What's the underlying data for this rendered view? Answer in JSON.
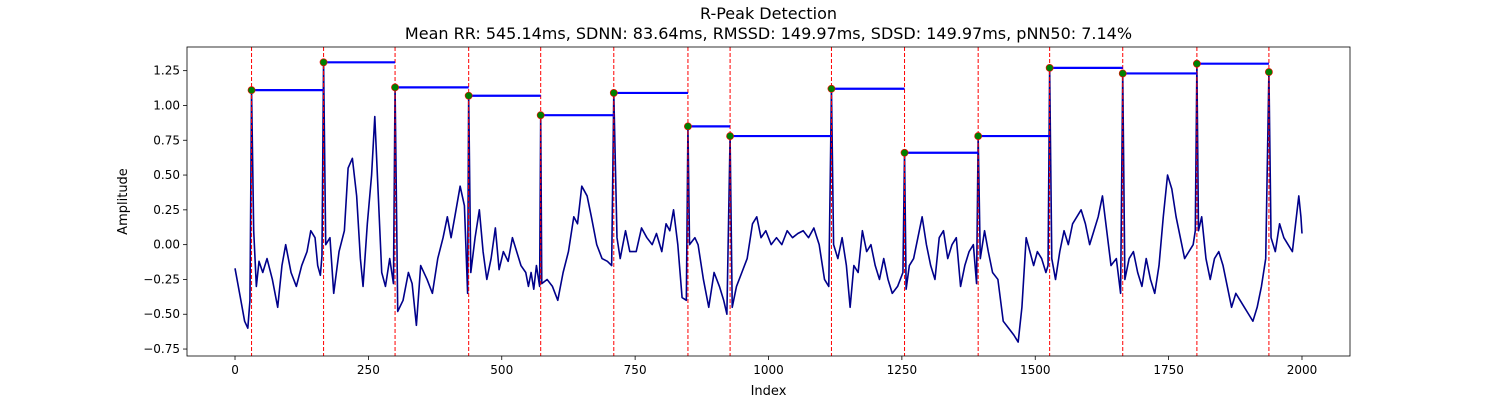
{
  "chart_data": {
    "type": "line",
    "title": "R-Peak Detection",
    "subtitle": "Mean RR: 545.14ms, SDNN: 83.64ms, RMSSD: 149.97ms, SDSD: 149.97ms, pNN50: 7.14%",
    "xlabel": "Index",
    "ylabel": "Amplitude",
    "xlim": [
      -90,
      2090
    ],
    "ylim": [
      -0.8,
      1.42
    ],
    "x_ticks": [
      0,
      250,
      500,
      750,
      1000,
      1250,
      1500,
      1750,
      2000
    ],
    "y_ticks": [
      -0.75,
      -0.5,
      -0.25,
      0.0,
      0.25,
      0.5,
      0.75,
      1.0,
      1.25
    ],
    "y_tick_labels": [
      "−0.75",
      "−0.50",
      "−0.25",
      "0.00",
      "0.25",
      "0.50",
      "0.75",
      "1.00",
      "1.25"
    ],
    "grid": false,
    "colors": {
      "signal": "#00008b",
      "peak_marker": "#008000",
      "peak_marker_edge": "#ff0000",
      "peak_line": "#ff0000",
      "rr_segment": "#0000ff"
    },
    "signal_keypoints": [
      [
        0,
        -0.17
      ],
      [
        10,
        -0.38
      ],
      [
        18,
        -0.55
      ],
      [
        24,
        -0.6
      ],
      [
        28,
        -0.4
      ],
      [
        31,
        1.11
      ],
      [
        35,
        0.1
      ],
      [
        40,
        -0.3
      ],
      [
        45,
        -0.12
      ],
      [
        52,
        -0.2
      ],
      [
        60,
        -0.1
      ],
      [
        70,
        -0.25
      ],
      [
        80,
        -0.45
      ],
      [
        88,
        -0.15
      ],
      [
        95,
        0.0
      ],
      [
        105,
        -0.2
      ],
      [
        115,
        -0.3
      ],
      [
        125,
        -0.15
      ],
      [
        135,
        -0.05
      ],
      [
        142,
        0.1
      ],
      [
        150,
        0.05
      ],
      [
        155,
        -0.15
      ],
      [
        160,
        -0.22
      ],
      [
        163,
        -0.08
      ],
      [
        166,
        1.31
      ],
      [
        170,
        0.0
      ],
      [
        178,
        0.05
      ],
      [
        185,
        -0.35
      ],
      [
        190,
        -0.2
      ],
      [
        195,
        -0.05
      ],
      [
        205,
        0.1
      ],
      [
        212,
        0.55
      ],
      [
        220,
        0.62
      ],
      [
        228,
        0.35
      ],
      [
        235,
        -0.1
      ],
      [
        240,
        -0.3
      ],
      [
        248,
        0.15
      ],
      [
        256,
        0.5
      ],
      [
        262,
        0.92
      ],
      [
        268,
        0.4
      ],
      [
        275,
        -0.2
      ],
      [
        282,
        -0.3
      ],
      [
        290,
        -0.1
      ],
      [
        297,
        -0.28
      ],
      [
        300,
        1.13
      ],
      [
        305,
        -0.48
      ],
      [
        315,
        -0.4
      ],
      [
        325,
        -0.2
      ],
      [
        332,
        -0.28
      ],
      [
        340,
        -0.58
      ],
      [
        348,
        -0.15
      ],
      [
        360,
        -0.25
      ],
      [
        370,
        -0.35
      ],
      [
        380,
        -0.1
      ],
      [
        390,
        0.05
      ],
      [
        398,
        0.2
      ],
      [
        405,
        0.05
      ],
      [
        412,
        0.2
      ],
      [
        422,
        0.42
      ],
      [
        430,
        0.28
      ],
      [
        436,
        -0.35
      ],
      [
        438,
        1.07
      ],
      [
        442,
        -0.2
      ],
      [
        450,
        0.05
      ],
      [
        458,
        0.25
      ],
      [
        465,
        -0.05
      ],
      [
        472,
        -0.25
      ],
      [
        480,
        -0.1
      ],
      [
        488,
        0.12
      ],
      [
        495,
        -0.18
      ],
      [
        503,
        -0.05
      ],
      [
        512,
        -0.12
      ],
      [
        520,
        0.05
      ],
      [
        528,
        -0.05
      ],
      [
        536,
        -0.15
      ],
      [
        545,
        -0.2
      ],
      [
        550,
        -0.3
      ],
      [
        555,
        -0.2
      ],
      [
        560,
        -0.32
      ],
      [
        565,
        -0.15
      ],
      [
        571,
        -0.3
      ],
      [
        573,
        0.93
      ],
      [
        575,
        -0.28
      ],
      [
        585,
        -0.25
      ],
      [
        595,
        -0.3
      ],
      [
        605,
        -0.4
      ],
      [
        615,
        -0.2
      ],
      [
        625,
        -0.05
      ],
      [
        635,
        0.2
      ],
      [
        642,
        0.15
      ],
      [
        650,
        0.42
      ],
      [
        660,
        0.35
      ],
      [
        668,
        0.2
      ],
      [
        678,
        0.0
      ],
      [
        688,
        -0.1
      ],
      [
        698,
        -0.12
      ],
      [
        706,
        -0.15
      ],
      [
        710,
        1.09
      ],
      [
        716,
        0.05
      ],
      [
        722,
        -0.1
      ],
      [
        732,
        0.1
      ],
      [
        740,
        -0.05
      ],
      [
        752,
        -0.05
      ],
      [
        762,
        0.12
      ],
      [
        772,
        0.05
      ],
      [
        782,
        0.0
      ],
      [
        790,
        0.08
      ],
      [
        800,
        -0.05
      ],
      [
        808,
        0.15
      ],
      [
        815,
        0.1
      ],
      [
        822,
        0.25
      ],
      [
        830,
        0.0
      ],
      [
        838,
        -0.38
      ],
      [
        846,
        -0.4
      ],
      [
        849,
        0.85
      ],
      [
        852,
        0.0
      ],
      [
        862,
        0.05
      ],
      [
        868,
        0.0
      ],
      [
        878,
        -0.25
      ],
      [
        888,
        -0.45
      ],
      [
        898,
        -0.2
      ],
      [
        908,
        -0.3
      ],
      [
        916,
        -0.4
      ],
      [
        922,
        -0.5
      ],
      [
        928,
        0.78
      ],
      [
        932,
        -0.45
      ],
      [
        940,
        -0.3
      ],
      [
        950,
        -0.2
      ],
      [
        960,
        -0.1
      ],
      [
        970,
        0.15
      ],
      [
        978,
        0.2
      ],
      [
        986,
        0.05
      ],
      [
        995,
        0.1
      ],
      [
        1005,
        0.0
      ],
      [
        1015,
        0.05
      ],
      [
        1025,
        0.0
      ],
      [
        1035,
        0.1
      ],
      [
        1045,
        0.05
      ],
      [
        1055,
        0.08
      ],
      [
        1065,
        0.1
      ],
      [
        1075,
        0.05
      ],
      [
        1085,
        0.12
      ],
      [
        1095,
        0.0
      ],
      [
        1105,
        -0.25
      ],
      [
        1113,
        -0.3
      ],
      [
        1118,
        1.12
      ],
      [
        1122,
        0.0
      ],
      [
        1130,
        -0.1
      ],
      [
        1138,
        0.05
      ],
      [
        1146,
        -0.15
      ],
      [
        1153,
        -0.45
      ],
      [
        1160,
        -0.15
      ],
      [
        1168,
        -0.2
      ],
      [
        1176,
        0.1
      ],
      [
        1184,
        -0.05
      ],
      [
        1192,
        0.0
      ],
      [
        1200,
        -0.15
      ],
      [
        1208,
        -0.25
      ],
      [
        1216,
        -0.1
      ],
      [
        1224,
        -0.25
      ],
      [
        1232,
        -0.35
      ],
      [
        1242,
        -0.3
      ],
      [
        1252,
        -0.2
      ],
      [
        1255,
        0.66
      ],
      [
        1258,
        -0.32
      ],
      [
        1264,
        -0.15
      ],
      [
        1272,
        -0.1
      ],
      [
        1280,
        0.05
      ],
      [
        1288,
        0.2
      ],
      [
        1296,
        0.0
      ],
      [
        1304,
        -0.15
      ],
      [
        1312,
        -0.25
      ],
      [
        1320,
        0.05
      ],
      [
        1328,
        0.1
      ],
      [
        1336,
        -0.1
      ],
      [
        1344,
        0.0
      ],
      [
        1352,
        0.05
      ],
      [
        1360,
        -0.3
      ],
      [
        1368,
        -0.15
      ],
      [
        1376,
        -0.05
      ],
      [
        1384,
        0.0
      ],
      [
        1390,
        -0.28
      ],
      [
        1393,
        0.78
      ],
      [
        1397,
        -0.1
      ],
      [
        1405,
        0.1
      ],
      [
        1412,
        -0.05
      ],
      [
        1420,
        -0.2
      ],
      [
        1430,
        -0.25
      ],
      [
        1440,
        -0.55
      ],
      [
        1450,
        -0.6
      ],
      [
        1460,
        -0.65
      ],
      [
        1468,
        -0.7
      ],
      [
        1475,
        -0.45
      ],
      [
        1483,
        0.05
      ],
      [
        1490,
        -0.05
      ],
      [
        1497,
        -0.15
      ],
      [
        1504,
        -0.05
      ],
      [
        1512,
        -0.1
      ],
      [
        1520,
        -0.2
      ],
      [
        1524,
        -0.15
      ],
      [
        1527,
        1.27
      ],
      [
        1531,
        -0.1
      ],
      [
        1538,
        -0.25
      ],
      [
        1546,
        -0.05
      ],
      [
        1554,
        0.1
      ],
      [
        1562,
        0.0
      ],
      [
        1570,
        0.15
      ],
      [
        1578,
        0.2
      ],
      [
        1586,
        0.25
      ],
      [
        1594,
        0.15
      ],
      [
        1602,
        0.0
      ],
      [
        1610,
        0.1
      ],
      [
        1618,
        0.2
      ],
      [
        1626,
        0.35
      ],
      [
        1634,
        0.1
      ],
      [
        1642,
        -0.15
      ],
      [
        1652,
        -0.1
      ],
      [
        1660,
        -0.35
      ],
      [
        1664,
        1.23
      ],
      [
        1668,
        -0.25
      ],
      [
        1676,
        -0.1
      ],
      [
        1684,
        -0.05
      ],
      [
        1692,
        -0.2
      ],
      [
        1700,
        -0.3
      ],
      [
        1708,
        -0.1
      ],
      [
        1716,
        -0.25
      ],
      [
        1724,
        -0.35
      ],
      [
        1732,
        -0.15
      ],
      [
        1740,
        0.2
      ],
      [
        1748,
        0.5
      ],
      [
        1756,
        0.4
      ],
      [
        1764,
        0.2
      ],
      [
        1772,
        0.05
      ],
      [
        1780,
        -0.1
      ],
      [
        1788,
        -0.05
      ],
      [
        1796,
        0.0
      ],
      [
        1800,
        0.1
      ],
      [
        1803,
        1.3
      ],
      [
        1806,
        0.1
      ],
      [
        1812,
        0.2
      ],
      [
        1820,
        -0.1
      ],
      [
        1828,
        -0.25
      ],
      [
        1836,
        -0.1
      ],
      [
        1844,
        -0.05
      ],
      [
        1852,
        -0.15
      ],
      [
        1860,
        -0.3
      ],
      [
        1868,
        -0.45
      ],
      [
        1876,
        -0.35
      ],
      [
        1884,
        -0.4
      ],
      [
        1892,
        -0.45
      ],
      [
        1900,
        -0.5
      ],
      [
        1908,
        -0.55
      ],
      [
        1916,
        -0.45
      ],
      [
        1924,
        -0.3
      ],
      [
        1932,
        -0.1
      ],
      [
        1938,
        1.24
      ],
      [
        1942,
        0.05
      ],
      [
        1950,
        -0.05
      ],
      [
        1958,
        0.15
      ],
      [
        1966,
        0.05
      ],
      [
        1974,
        0.0
      ],
      [
        1982,
        -0.05
      ],
      [
        1988,
        0.15
      ],
      [
        1994,
        0.35
      ],
      [
        1998,
        0.2
      ],
      [
        2000,
        0.08
      ]
    ],
    "r_peaks": [
      {
        "x": 31,
        "y": 1.11
      },
      {
        "x": 166,
        "y": 1.31
      },
      {
        "x": 300,
        "y": 1.13
      },
      {
        "x": 438,
        "y": 1.07
      },
      {
        "x": 573,
        "y": 0.93
      },
      {
        "x": 710,
        "y": 1.09
      },
      {
        "x": 849,
        "y": 0.85
      },
      {
        "x": 928,
        "y": 0.78
      },
      {
        "x": 1118,
        "y": 1.12
      },
      {
        "x": 1255,
        "y": 0.66
      },
      {
        "x": 1393,
        "y": 0.78
      },
      {
        "x": 1527,
        "y": 1.27
      },
      {
        "x": 1664,
        "y": 1.23
      },
      {
        "x": 1803,
        "y": 1.3
      },
      {
        "x": 1938,
        "y": 1.24
      }
    ]
  }
}
